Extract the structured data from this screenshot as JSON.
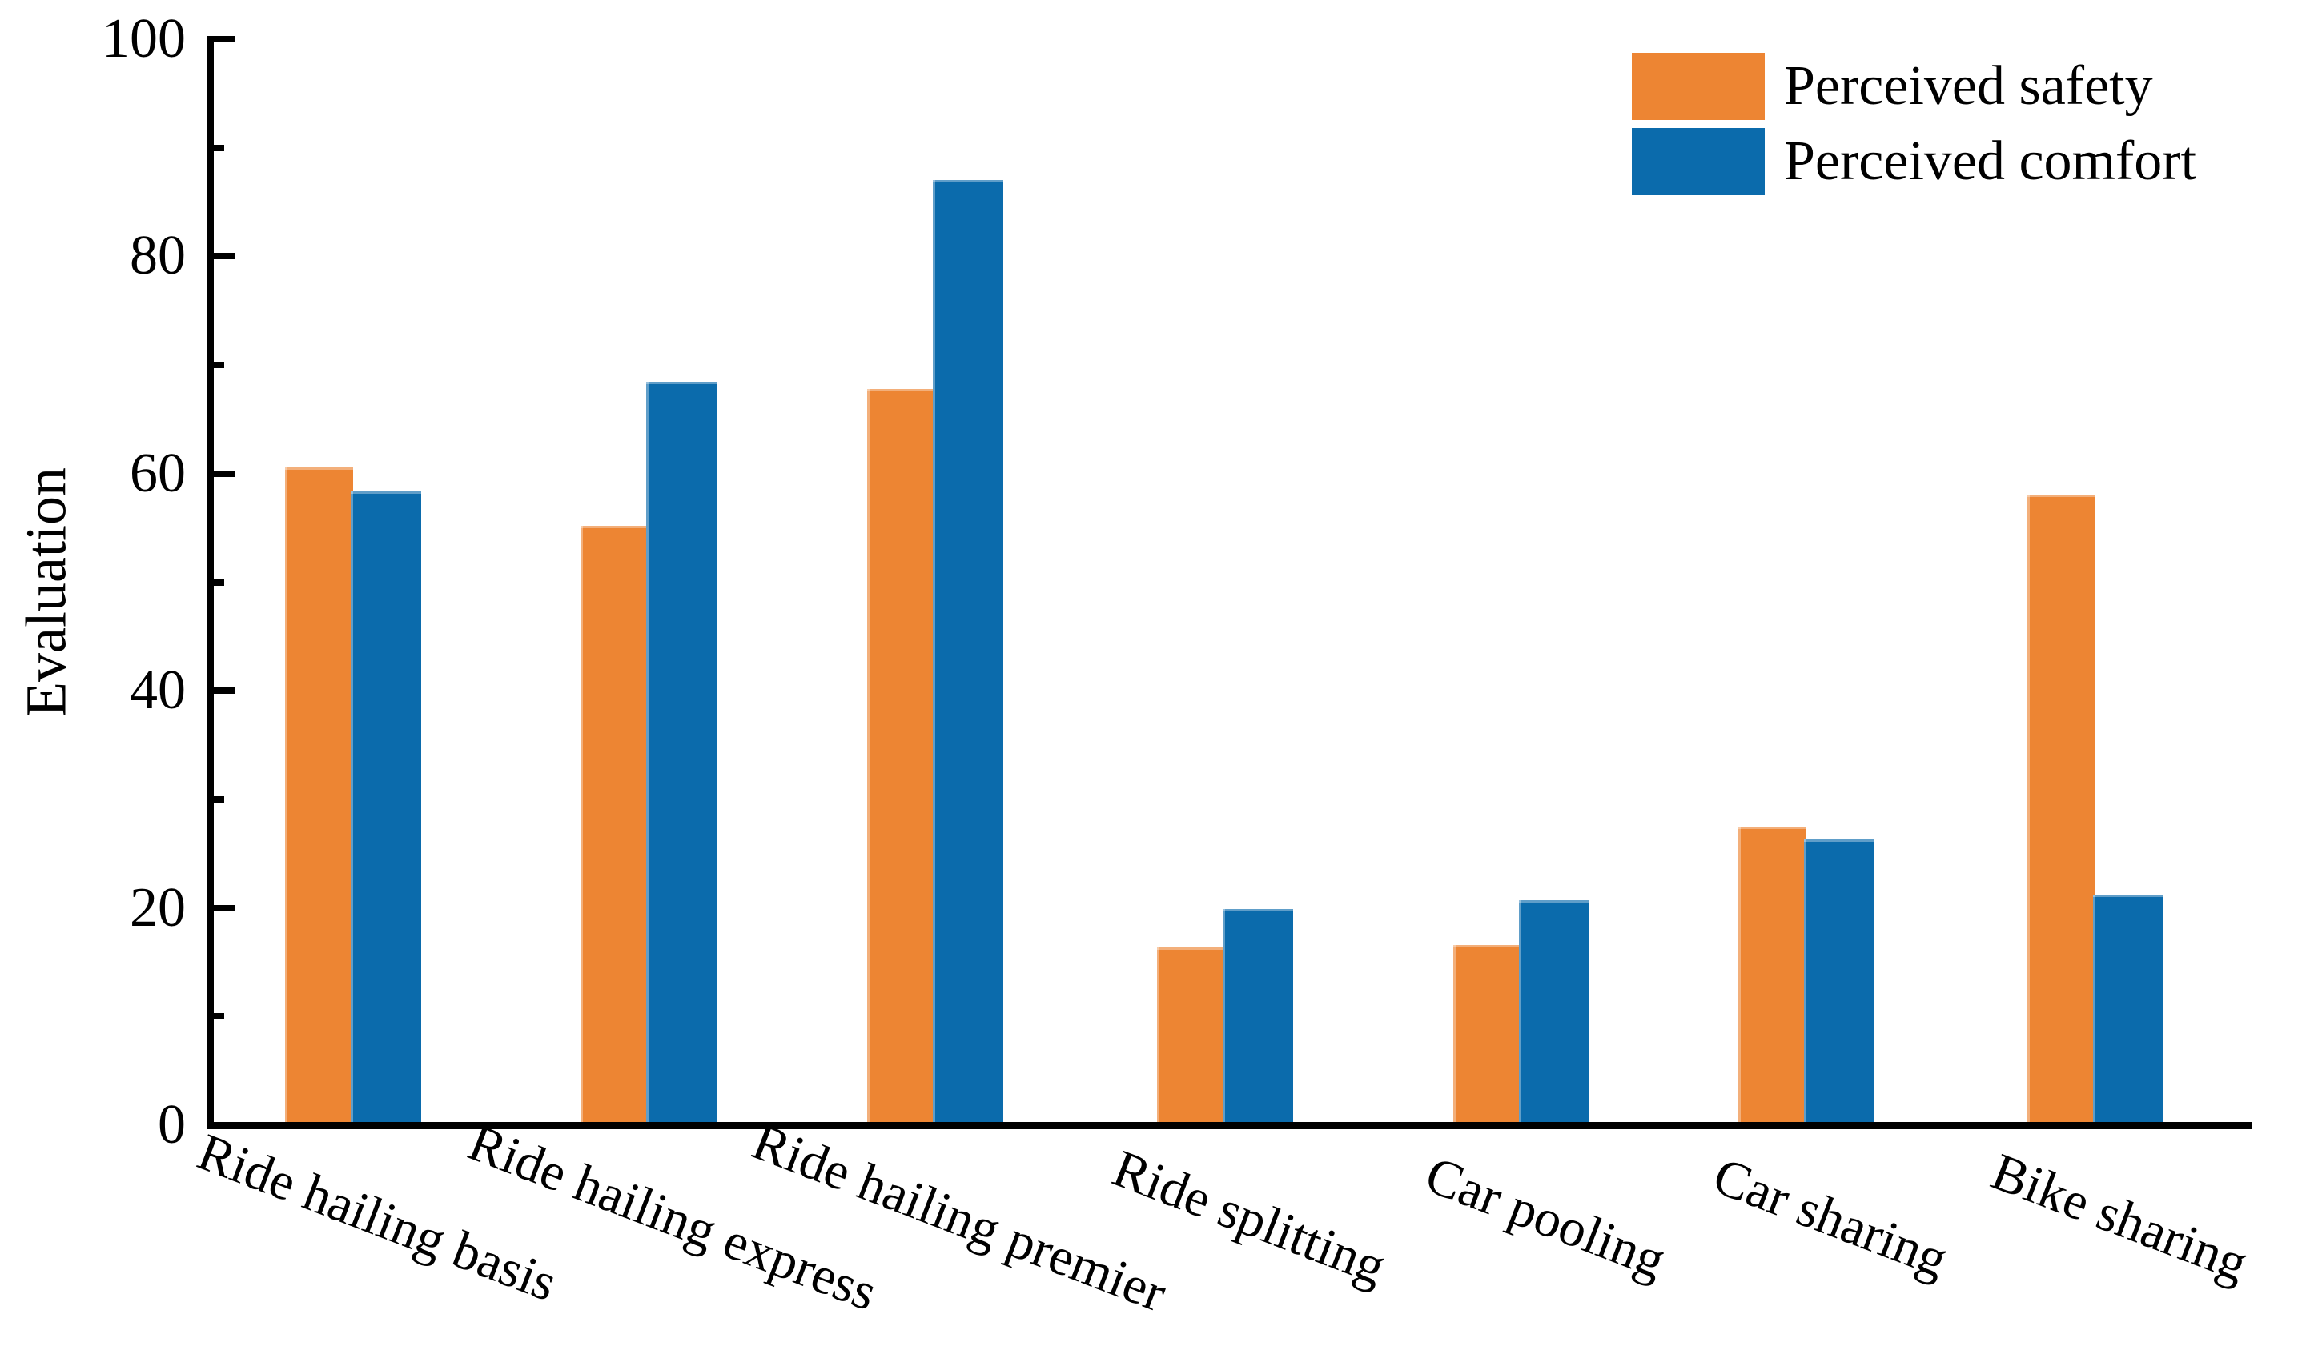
{
  "figure": {
    "background_color": "#FFFFFF",
    "axis_color": "#000000",
    "text_color": "#000000"
  },
  "chart_data": {
    "type": "bar",
    "title": "",
    "xlabel": "",
    "ylabel": "Evaluation",
    "categories": [
      "Ride hailing basis",
      "Ride hailing express",
      "Ride hailing premier",
      "Ride splitting",
      "Car pooling",
      "Car sharing",
      "Bike sharing"
    ],
    "series": [
      {
        "name": "Perceived safety",
        "color": "#ED8533",
        "values": [
          60.3,
          54.9,
          67.5,
          16.1,
          16.3,
          27.2,
          57.8
        ]
      },
      {
        "name": "Perceived comfort",
        "color": "#0B6BAC",
        "values": [
          58.1,
          68.2,
          86.7,
          19.6,
          20.4,
          26.0,
          20.9
        ]
      }
    ],
    "ylim": [
      0,
      100
    ],
    "yticks": [
      0,
      20,
      40,
      60,
      80,
      100
    ],
    "minor_yticks": [
      10,
      30,
      50,
      70,
      90
    ],
    "grid": false,
    "legend_position": "top-right",
    "tick_direction": "in",
    "x_tick_label_rotation_deg": 21
  }
}
